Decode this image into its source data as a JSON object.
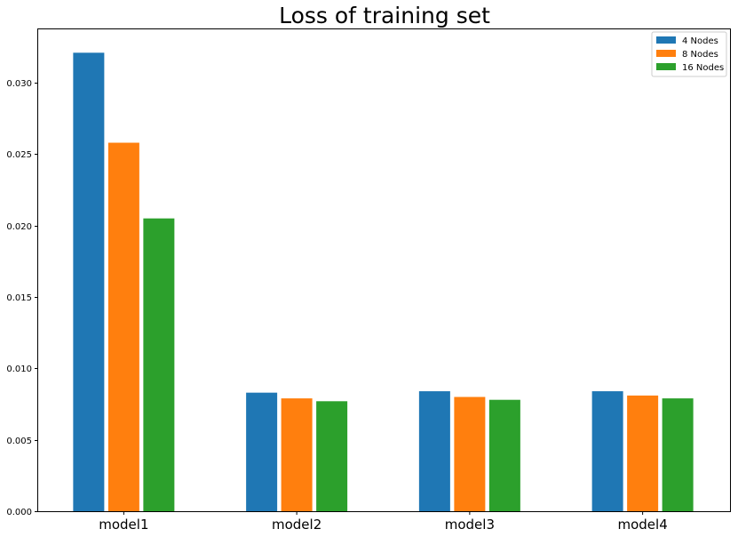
{
  "chart_data": {
    "type": "bar",
    "title": "Loss of training set",
    "xlabel": "",
    "ylabel": "",
    "categories": [
      "model1",
      "model2",
      "model3",
      "model4"
    ],
    "series": [
      {
        "name": "4 Nodes",
        "color": "#1f77b4",
        "values": [
          0.0321,
          0.0083,
          0.0084,
          0.0084
        ]
      },
      {
        "name": "8 Nodes",
        "color": "#ff7f0e",
        "values": [
          0.0258,
          0.0079,
          0.008,
          0.0081
        ]
      },
      {
        "name": "16 Nodes",
        "color": "#2ca02c",
        "values": [
          0.0205,
          0.0077,
          0.0078,
          0.0079
        ]
      }
    ],
    "ylim": [
      0,
      0.0338
    ],
    "yticks": [
      "0.000",
      "0.005",
      "0.010",
      "0.015",
      "0.020",
      "0.025",
      "0.030"
    ],
    "ytick_values": [
      0,
      0.005,
      0.01,
      0.015,
      0.02,
      0.025,
      0.03
    ],
    "grid": false,
    "legend_position": "top-right"
  }
}
